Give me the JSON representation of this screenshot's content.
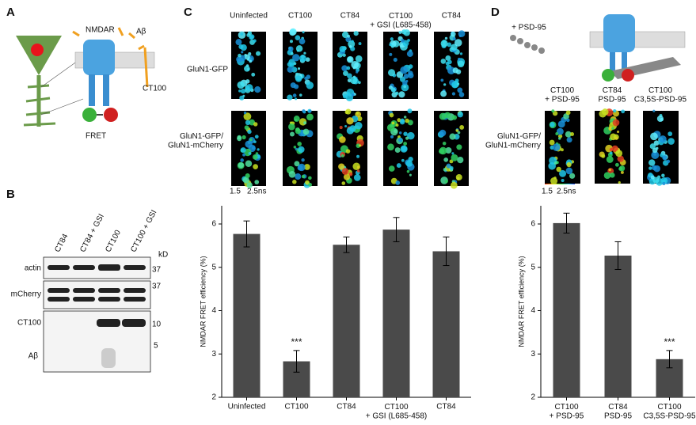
{
  "figure": {
    "panel_labels": [
      "A",
      "B",
      "C",
      "D"
    ],
    "panel_a": {
      "receptor": "NMDAR",
      "peptide": "Aβ",
      "fragment": "CT100",
      "readout": "FRET"
    },
    "panel_b": {
      "lanes": [
        "CT84",
        "CT84 + GSI",
        "CT100",
        "CT100 + GSI"
      ],
      "unit": "kD",
      "markers": [
        "37",
        "37",
        "10",
        "5"
      ],
      "rows": [
        "actin",
        "mCherry",
        "CT100",
        "Aβ"
      ]
    },
    "panel_c": {
      "columns": [
        "Uninfected",
        "CT100",
        "CT84",
        "CT100\n+ GSI (L685-458)",
        "CT84"
      ],
      "rows": [
        "GluN1-GFP",
        "GluN1-GFP/\nGluN1-mCherry"
      ],
      "scale_low": "1.5",
      "scale_high": "2.5ns"
    },
    "panel_d": {
      "construct": "+ PSD-95",
      "columns": [
        "CT100\n+ PSD-95",
        "CT84\nPSD-95",
        "CT100\nC3,5S-PSD-95"
      ],
      "row": "GluN1-GFP/\nGluN1-mCherry",
      "scale_low": "1.5",
      "scale_high": "2.5ns"
    }
  },
  "chart_data": [
    {
      "type": "bar",
      "ylabel": "NMDAR FRET efficiency (%)",
      "color": "#4a4a4a",
      "categories": [
        "Uninfected",
        "CT100",
        "CT84",
        "CT100\n+ GSI (L685-458)",
        "CT84"
      ],
      "values": [
        5.77,
        2.83,
        5.52,
        5.87,
        5.37
      ],
      "errors": [
        0.3,
        0.25,
        0.18,
        0.28,
        0.33
      ],
      "significance": [
        null,
        "***",
        null,
        null,
        null
      ],
      "ylim": [
        2,
        6.42
      ],
      "yticks": [
        2,
        3,
        4,
        5,
        6
      ]
    },
    {
      "type": "bar",
      "ylabel": "NMDAR FRET efficiency (%)",
      "color": "#4a4a4a",
      "categories": [
        "CT100\n+ PSD-95",
        "CT84\nPSD-95",
        "CT100\nC3,5S-PSD-95"
      ],
      "values": [
        6.02,
        5.27,
        2.88
      ],
      "errors": [
        0.23,
        0.32,
        0.2
      ],
      "significance": [
        null,
        null,
        "***"
      ],
      "ylim": [
        2,
        6.42
      ],
      "yticks": [
        2,
        3,
        4,
        5,
        6
      ]
    }
  ]
}
